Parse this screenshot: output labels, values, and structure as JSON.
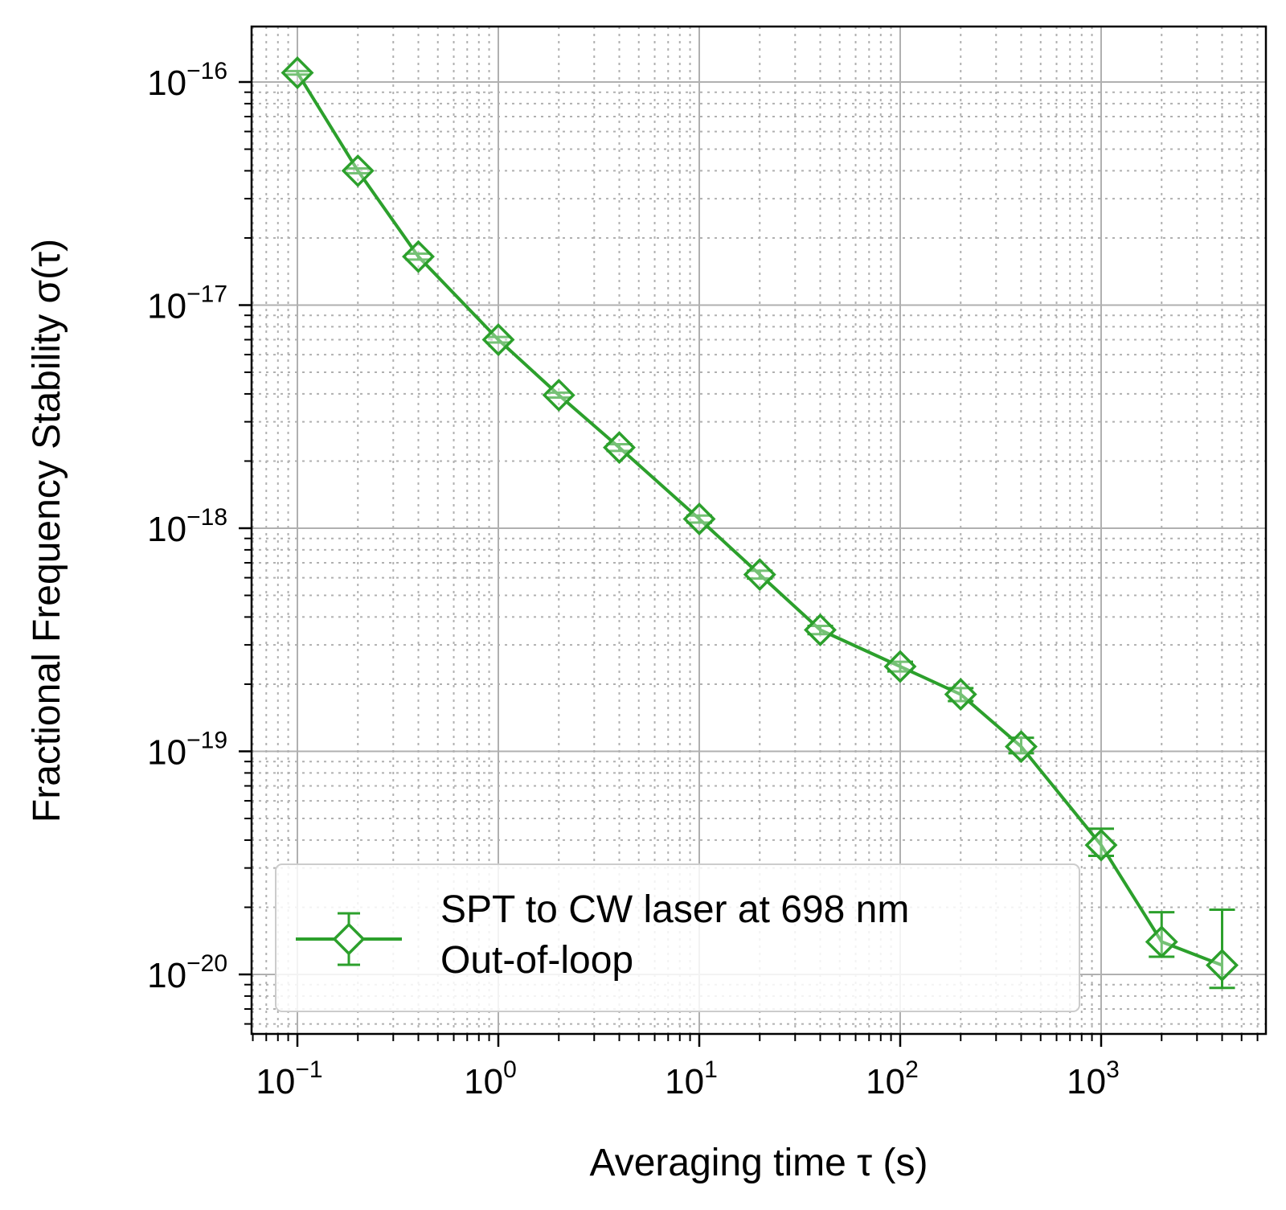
{
  "chart_data": {
    "type": "scatter",
    "xscale": "log",
    "yscale": "log",
    "xlabel": "Averaging time τ (s)",
    "ylabel": "Fractional Frequency Stability σ(τ)",
    "xlim": [
      0.06,
      7000
    ],
    "ylim": [
      5.5e-21,
      1.8e-16
    ],
    "grid": true,
    "x_ticks": [
      {
        "value": 0.1,
        "base": "10",
        "exp": "−1"
      },
      {
        "value": 1,
        "base": "10",
        "exp": "0"
      },
      {
        "value": 10,
        "base": "10",
        "exp": "1"
      },
      {
        "value": 100,
        "base": "10",
        "exp": "2"
      },
      {
        "value": 1000,
        "base": "10",
        "exp": "3"
      }
    ],
    "y_ticks": [
      {
        "value": 1e-16,
        "base": "10",
        "exp": "−16"
      },
      {
        "value": 1e-17,
        "base": "10",
        "exp": "−17"
      },
      {
        "value": 1e-18,
        "base": "10",
        "exp": "−18"
      },
      {
        "value": 1e-19,
        "base": "10",
        "exp": "−19"
      },
      {
        "value": 1e-20,
        "base": "10",
        "exp": "−20"
      }
    ],
    "legend": {
      "placement": "lower-left",
      "lines": [
        "SPT to CW laser at 698 nm",
        "Out-of-loop"
      ]
    },
    "series": [
      {
        "name": "SPT to CW laser at 698 nm Out-of-loop",
        "color": "#2ca02c",
        "marker": "diamond",
        "x": [
          0.1,
          0.2,
          0.4,
          1,
          2,
          4,
          10,
          20,
          40,
          100,
          200,
          400,
          1000,
          2000,
          4000
        ],
        "y": [
          1.1e-16,
          4e-17,
          1.65e-17,
          7e-18,
          3.95e-18,
          2.3e-18,
          1.1e-18,
          6.2e-19,
          3.5e-19,
          2.4e-19,
          1.8e-19,
          1.05e-19,
          3.8e-20,
          1.4e-20,
          1.1e-20
        ],
        "y_lower": [
          1.08e-16,
          3.9e-17,
          1.6e-17,
          6.8e-18,
          3.85e-18,
          2.22e-18,
          1.06e-18,
          5.95e-19,
          3.35e-19,
          2.28e-19,
          1.68e-19,
          9.8e-20,
          3.4e-20,
          1.2e-20,
          8.7e-21
        ],
        "y_upper": [
          1.12e-16,
          4.1e-17,
          1.7e-17,
          7.2e-18,
          4.05e-18,
          2.38e-18,
          1.14e-18,
          6.45e-19,
          3.65e-19,
          2.52e-19,
          1.92e-19,
          1.15e-19,
          4.5e-20,
          1.9e-20,
          1.95e-20
        ]
      }
    ]
  }
}
